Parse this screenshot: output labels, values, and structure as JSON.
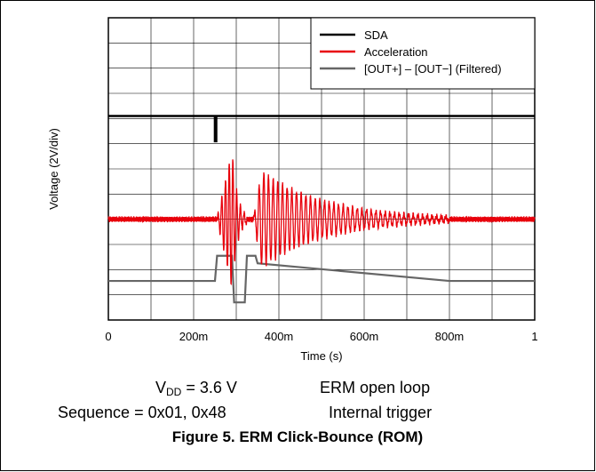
{
  "chart_data": {
    "type": "line",
    "title": "",
    "xlabel": "Time (s)",
    "ylabel": "Voltage (2V/div)",
    "xlim": [
      0,
      1
    ],
    "ylim": [
      -4,
      8
    ],
    "x_ticks": [
      0,
      0.2,
      0.4,
      0.6,
      0.8,
      1.0
    ],
    "x_tick_labels": [
      "0",
      "200m",
      "400m",
      "600m",
      "800m",
      "1"
    ],
    "x_divisions": 10,
    "y_divisions": 12,
    "grid": true,
    "legend_position": "top-right",
    "series": [
      {
        "name": "SDA",
        "color": "#000000",
        "points": [
          [
            0,
            4.1
          ],
          [
            0.25,
            4.1
          ],
          [
            0.25,
            3.1
          ],
          [
            0.253,
            3.1
          ],
          [
            0.253,
            4.1
          ],
          [
            1.0,
            4.1
          ]
        ]
      },
      {
        "name": "Acceleration",
        "color": "#e8000b",
        "baseline": 0.0,
        "bursts": [
          {
            "start": 0.255,
            "peak": 0.29,
            "end": 0.325,
            "amplitude": 2.8,
            "cycles": 8
          },
          {
            "start": 0.34,
            "peak": 0.36,
            "end": 0.8,
            "amplitude": 1.9,
            "cycles": 42
          }
        ]
      },
      {
        "name": "[OUT+] – [OUT−] (Filtered)",
        "color": "#666666",
        "points": [
          [
            0,
            -2.45
          ],
          [
            0.25,
            -2.45
          ],
          [
            0.255,
            -1.45
          ],
          [
            0.29,
            -1.45
          ],
          [
            0.295,
            -3.3
          ],
          [
            0.32,
            -3.3
          ],
          [
            0.325,
            -1.45
          ],
          [
            0.345,
            -1.45
          ],
          [
            0.35,
            -1.75
          ],
          [
            0.8,
            -2.45
          ],
          [
            1.0,
            -2.45
          ]
        ]
      }
    ]
  },
  "conditions": {
    "vdd_prefix": "V",
    "vdd_sub": "DD",
    "vdd_rest": " = 3.6 V",
    "mode": "ERM open loop",
    "sequence": "Sequence = 0x01, 0x48",
    "trigger": "Internal trigger"
  },
  "caption": "Figure 5. ERM Click-Bounce (ROM)"
}
